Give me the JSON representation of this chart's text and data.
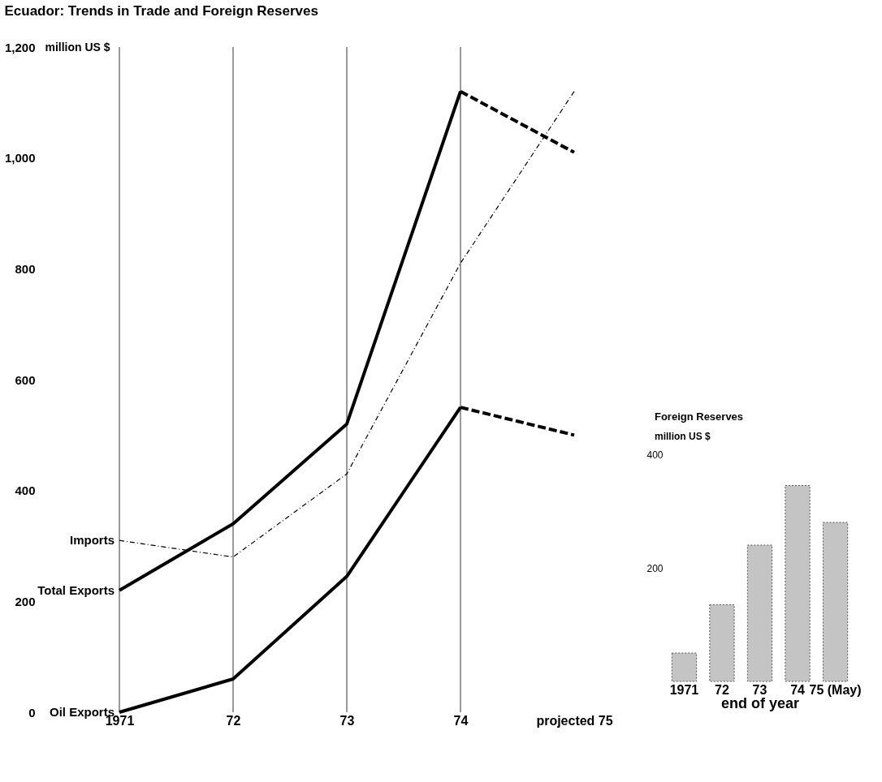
{
  "chart_data": [
    {
      "type": "line",
      "title": "Ecuador: Trends in Trade and Foreign Reserves",
      "ylabel": "million US $",
      "categories": [
        "1971",
        "72",
        "73",
        "74",
        "projected 75"
      ],
      "series": [
        {
          "name": "Imports",
          "color": "#000000",
          "line_style": "dotted",
          "values": [
            310,
            280,
            430,
            810,
            1120
          ]
        },
        {
          "name": "Total Exports",
          "color": "#000000",
          "line_style": "solid",
          "values": [
            220,
            340,
            520,
            1120,
            null
          ]
        },
        {
          "color": "#000000",
          "line_style": "dashed",
          "values": [
            null,
            null,
            null,
            1120,
            1010
          ]
        },
        {
          "name": "Oil Exports",
          "color": "#000000",
          "line_style": "solid",
          "values": [
            0,
            60,
            245,
            550,
            null
          ]
        },
        {
          "color": "#000000",
          "line_style": "dashed",
          "values": [
            null,
            null,
            null,
            550,
            500
          ]
        }
      ],
      "ylim": [
        0,
        1200
      ],
      "yticks": [
        0,
        200,
        400,
        600,
        800,
        {
          "value": 1000,
          "label": "1,000"
        },
        {
          "value": 1200,
          "label": "1,200"
        }
      ],
      "ref_lines": [
        {
          "axis": "x",
          "value": "1971"
        },
        {
          "axis": "x",
          "value": "72"
        },
        {
          "axis": "x",
          "value": "73"
        },
        {
          "axis": "x",
          "value": "74"
        }
      ],
      "grid": false
    },
    {
      "type": "bar",
      "title": "Foreign Reserves",
      "ylabel": "million US $",
      "xlabel": "end of year",
      "categories": [
        "1971",
        "72",
        "73",
        "74",
        "75 (May)"
      ],
      "values": [
        50,
        135,
        240,
        345,
        280
      ],
      "color": "#c4c4c4",
      "ylim": [
        0,
        400
      ],
      "yticks": [
        200,
        400
      ],
      "grid": false
    }
  ]
}
